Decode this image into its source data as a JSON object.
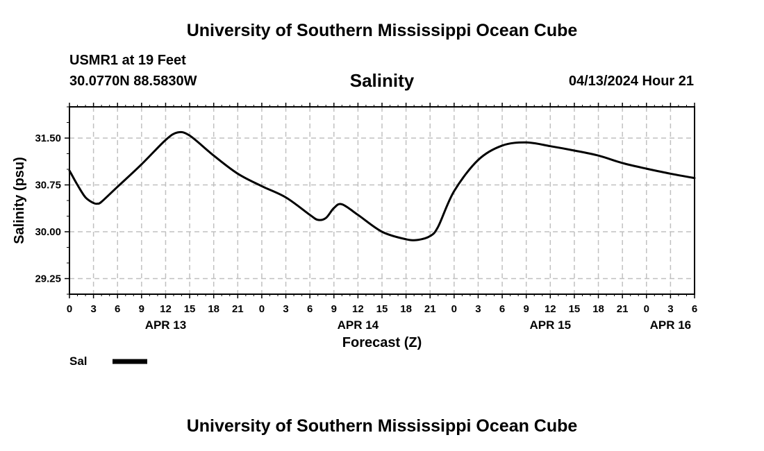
{
  "header": {
    "title": "University of Southern Mississippi Ocean Cube",
    "station": "USMR1 at 19 Feet",
    "coords": "30.0770N  88.5830W",
    "datetime": "04/13/2024 Hour 21",
    "footer_title": "University of Southern Mississippi Ocean Cube"
  },
  "chart_data": {
    "type": "line",
    "title": "Salinity",
    "xlabel": "Forecast (Z)",
    "ylabel": "Salinity (psu)",
    "x_unit": "hours since APR 13 00Z",
    "xlim": [
      0,
      78
    ],
    "ylim": [
      29.0,
      32.0
    ],
    "yticks": [
      29.25,
      30.0,
      30.75,
      31.5
    ],
    "ytick_labels": [
      "29.25",
      "30.00",
      "30.75",
      "31.50"
    ],
    "xticks": [
      0,
      3,
      6,
      9,
      12,
      15,
      18,
      21,
      24,
      27,
      30,
      33,
      36,
      39,
      42,
      45,
      48,
      51,
      54,
      57,
      60,
      63,
      66,
      69,
      72,
      75,
      78
    ],
    "xtick_labels": [
      "0",
      "3",
      "6",
      "9",
      "12",
      "15",
      "18",
      "21",
      "0",
      "3",
      "6",
      "9",
      "12",
      "15",
      "18",
      "21",
      "0",
      "3",
      "6",
      "9",
      "12",
      "15",
      "18",
      "21",
      "0",
      "3",
      "6"
    ],
    "date_labels": [
      {
        "x": 12,
        "label": "APR 13"
      },
      {
        "x": 36,
        "label": "APR 14"
      },
      {
        "x": 60,
        "label": "APR 15"
      },
      {
        "x": 75,
        "label": "APR 16"
      }
    ],
    "grid": true,
    "legend": [
      {
        "label": "Sal",
        "color": "#000000"
      }
    ],
    "series": [
      {
        "name": "Sal",
        "color": "#000000",
        "x": [
          0,
          1,
          2,
          3,
          3.5,
          4,
          6,
          9,
          12,
          13.5,
          15,
          18,
          21,
          24,
          27,
          30,
          31,
          32,
          33,
          34,
          36,
          39,
          42,
          43.5,
          45,
          46,
          48,
          51,
          54,
          57,
          60,
          63,
          66,
          69,
          72,
          75,
          78
        ],
        "values": [
          30.98,
          30.75,
          30.55,
          30.46,
          30.45,
          30.48,
          30.72,
          31.08,
          31.47,
          31.59,
          31.54,
          31.22,
          30.93,
          30.73,
          30.55,
          30.27,
          30.19,
          30.22,
          30.38,
          30.44,
          30.27,
          30.0,
          29.88,
          29.87,
          29.93,
          30.08,
          30.65,
          31.15,
          31.38,
          31.43,
          31.37,
          31.3,
          31.22,
          31.1,
          31.01,
          30.93,
          30.86
        ]
      }
    ]
  }
}
